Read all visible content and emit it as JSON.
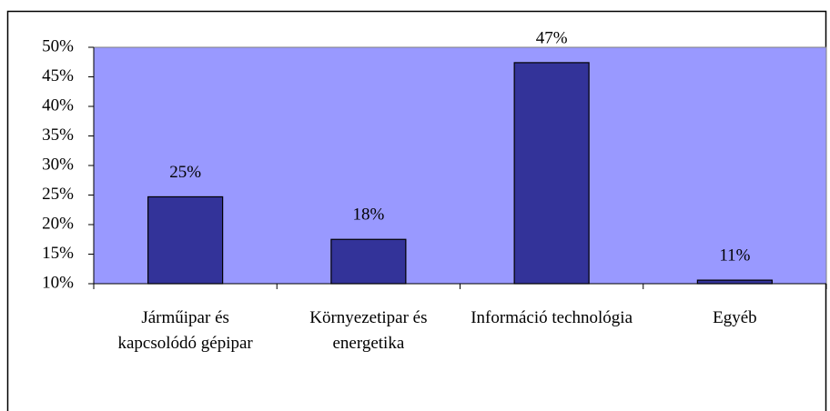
{
  "chart_data": {
    "type": "bar",
    "categories": [
      "Járműipar és kapcsolódó gépipar",
      "Környezetipar és energetika",
      "Információ technológia",
      "Egyéb"
    ],
    "values": [
      24.7,
      17.5,
      47.4,
      10.6
    ],
    "value_labels": [
      "25%",
      "18%",
      "47%",
      "11%"
    ],
    "color": "#333399",
    "plot_background": "#9999ff",
    "ylim": [
      10,
      50
    ],
    "yticks": [
      {
        "value": 10,
        "label": "10%"
      },
      {
        "value": 15,
        "label": "15%"
      },
      {
        "value": 20,
        "label": "20%"
      },
      {
        "value": 25,
        "label": "25%"
      },
      {
        "value": 30,
        "label": "30%"
      },
      {
        "value": 35,
        "label": "35%"
      },
      {
        "value": 40,
        "label": "40%"
      },
      {
        "value": 45,
        "label": "45%"
      },
      {
        "value": 50,
        "label": "50%"
      }
    ],
    "grid": false
  }
}
